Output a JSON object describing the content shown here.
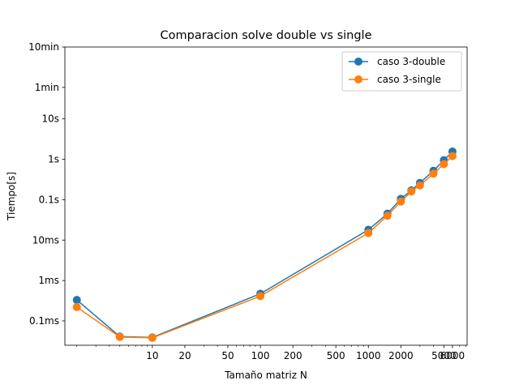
{
  "chart_data": {
    "type": "line",
    "title": "Comparacion solve double vs single",
    "xlabel": "Tamaño matriz N",
    "ylabel": "Tiempo[s]",
    "x_scale": "log",
    "y_scale": "log",
    "xlim": [
      1.55,
      8200
    ],
    "ylim": [
      2.5e-05,
      600
    ],
    "x": [
      2,
      5,
      10,
      100,
      1000,
      1500,
      2000,
      2500,
      3000,
      4000,
      5000,
      6000
    ],
    "xticks": [
      {
        "value": 10,
        "label": "10"
      },
      {
        "value": 20,
        "label": "20"
      },
      {
        "value": 50,
        "label": "50"
      },
      {
        "value": 100,
        "label": "100"
      },
      {
        "value": 200,
        "label": "200"
      },
      {
        "value": 500,
        "label": "500"
      },
      {
        "value": 1000,
        "label": "1000"
      },
      {
        "value": 2000,
        "label": "2000"
      },
      {
        "value": 5000,
        "label": "5000"
      },
      {
        "value": 6000,
        "label": "6000"
      }
    ],
    "yticks": [
      {
        "value": 0.0001,
        "label": "0.1ms"
      },
      {
        "value": 0.001,
        "label": "1ms"
      },
      {
        "value": 0.01,
        "label": "10ms"
      },
      {
        "value": 0.1,
        "label": "0.1s"
      },
      {
        "value": 1,
        "label": "1s"
      },
      {
        "value": 10,
        "label": "10s"
      },
      {
        "value": 60,
        "label": "1min"
      },
      {
        "value": 600,
        "label": "10min"
      }
    ],
    "series": [
      {
        "name": "caso 3-double",
        "color": "#1f77b4",
        "values": [
          0.00033,
          4.1e-05,
          3.9e-05,
          0.00047,
          0.018,
          0.045,
          0.105,
          0.17,
          0.26,
          0.52,
          0.95,
          1.55
        ]
      },
      {
        "name": "caso 3-single",
        "color": "#ff7f0e",
        "values": [
          0.00022,
          4e-05,
          3.8e-05,
          0.00041,
          0.015,
          0.04,
          0.09,
          0.16,
          0.225,
          0.44,
          0.76,
          1.2
        ]
      }
    ],
    "grid": false,
    "legend_position": "top-right"
  }
}
